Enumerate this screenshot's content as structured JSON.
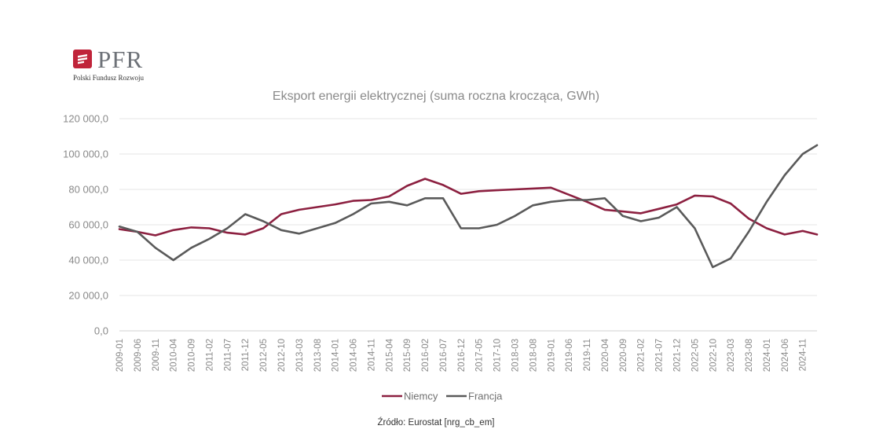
{
  "logo": {
    "name": "PFR",
    "subtitle": "Polski Fundusz Rozwoju",
    "color": "#c0243a"
  },
  "source": "Źródło: Eurostat [nrg_cb_em]",
  "chart_data": {
    "type": "line",
    "title": "Eksport energii elektrycznej (suma roczna krocząca, GWh)",
    "xlabel": "",
    "ylabel": "",
    "ylim": [
      0,
      120000
    ],
    "yticks": [
      "0,0",
      "20 000,0",
      "40 000,0",
      "60 000,0",
      "80 000,0",
      "100 000,0",
      "120 000,0"
    ],
    "grid": true,
    "legend_position": "bottom",
    "x_start": "2009-01",
    "x_end": "2025-03",
    "x_tick_labels": [
      "2009-01",
      "2009-06",
      "2009-11",
      "2010-04",
      "2010-09",
      "2011-02",
      "2011-07",
      "2011-12",
      "2012-05",
      "2012-10",
      "2013-03",
      "2013-08",
      "2014-01",
      "2014-06",
      "2014-11",
      "2015-04",
      "2015-09",
      "2016-02",
      "2016-07",
      "2016-12",
      "2017-05",
      "2017-10",
      "2018-03",
      "2018-08",
      "2019-01",
      "2019-06",
      "2019-11",
      "2020-04",
      "2020-09",
      "2021-02",
      "2021-07",
      "2021-12",
      "2022-05",
      "2022-10",
      "2023-03",
      "2023-08",
      "2024-01",
      "2024-06",
      "2024-11"
    ],
    "series": [
      {
        "name": "Niemcy",
        "color": "#8c2040",
        "points": [
          [
            "2009-01",
            57500
          ],
          [
            "2009-06",
            56000
          ],
          [
            "2009-11",
            54000
          ],
          [
            "2010-04",
            57000
          ],
          [
            "2010-09",
            58500
          ],
          [
            "2011-02",
            58000
          ],
          [
            "2011-07",
            55500
          ],
          [
            "2011-12",
            54500
          ],
          [
            "2012-05",
            58000
          ],
          [
            "2012-10",
            66000
          ],
          [
            "2013-03",
            68500
          ],
          [
            "2013-08",
            70000
          ],
          [
            "2014-01",
            71500
          ],
          [
            "2014-06",
            73500
          ],
          [
            "2014-11",
            74000
          ],
          [
            "2015-04",
            76000
          ],
          [
            "2015-09",
            82000
          ],
          [
            "2016-02",
            86000
          ],
          [
            "2016-07",
            82500
          ],
          [
            "2016-12",
            77500
          ],
          [
            "2017-05",
            79000
          ],
          [
            "2017-10",
            79500
          ],
          [
            "2018-03",
            80000
          ],
          [
            "2018-08",
            80500
          ],
          [
            "2019-01",
            81000
          ],
          [
            "2019-06",
            77000
          ],
          [
            "2019-11",
            73000
          ],
          [
            "2020-04",
            68500
          ],
          [
            "2020-09",
            67500
          ],
          [
            "2021-02",
            66500
          ],
          [
            "2021-07",
            69000
          ],
          [
            "2021-12",
            71500
          ],
          [
            "2022-05",
            76500
          ],
          [
            "2022-10",
            76000
          ],
          [
            "2023-03",
            72000
          ],
          [
            "2023-08",
            63500
          ],
          [
            "2024-01",
            58000
          ],
          [
            "2024-06",
            54500
          ],
          [
            "2024-11",
            56500
          ],
          [
            "2025-03",
            54500
          ]
        ]
      },
      {
        "name": "Francja",
        "color": "#5a5a5a",
        "points": [
          [
            "2009-01",
            59000
          ],
          [
            "2009-06",
            56000
          ],
          [
            "2009-11",
            47000
          ],
          [
            "2010-04",
            40000
          ],
          [
            "2010-09",
            47000
          ],
          [
            "2011-02",
            52000
          ],
          [
            "2011-07",
            58000
          ],
          [
            "2011-12",
            66000
          ],
          [
            "2012-05",
            62000
          ],
          [
            "2012-10",
            57000
          ],
          [
            "2013-03",
            55000
          ],
          [
            "2013-08",
            58000
          ],
          [
            "2014-01",
            61000
          ],
          [
            "2014-06",
            66000
          ],
          [
            "2014-11",
            72000
          ],
          [
            "2015-04",
            73000
          ],
          [
            "2015-09",
            71000
          ],
          [
            "2016-02",
            75000
          ],
          [
            "2016-07",
            75000
          ],
          [
            "2016-12",
            58000
          ],
          [
            "2017-05",
            58000
          ],
          [
            "2017-10",
            60000
          ],
          [
            "2018-03",
            65000
          ],
          [
            "2018-08",
            71000
          ],
          [
            "2019-01",
            73000
          ],
          [
            "2019-06",
            74000
          ],
          [
            "2019-11",
            74000
          ],
          [
            "2020-04",
            75000
          ],
          [
            "2020-09",
            65000
          ],
          [
            "2021-02",
            62000
          ],
          [
            "2021-07",
            64000
          ],
          [
            "2021-12",
            70000
          ],
          [
            "2022-05",
            58000
          ],
          [
            "2022-10",
            36000
          ],
          [
            "2023-03",
            41000
          ],
          [
            "2023-08",
            56000
          ],
          [
            "2024-01",
            73000
          ],
          [
            "2024-06",
            88000
          ],
          [
            "2024-11",
            100000
          ],
          [
            "2025-03",
            105000
          ]
        ]
      }
    ]
  }
}
